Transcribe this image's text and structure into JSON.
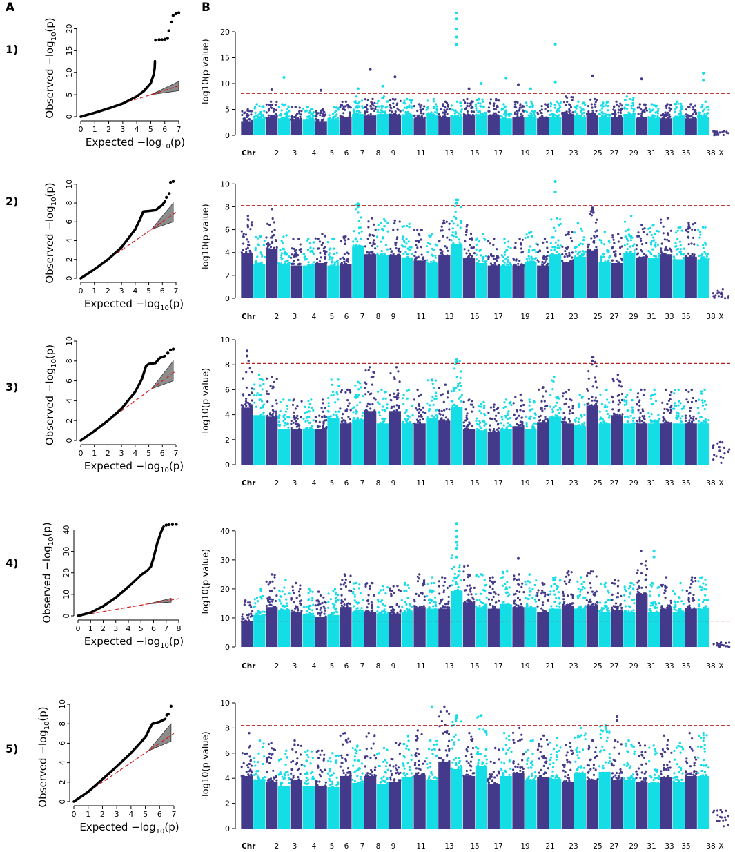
{
  "figure": {
    "panel_a_label": "A",
    "panel_b_label": "B",
    "colors": {
      "dark": "#443a8c",
      "light": "#14dde6",
      "qq_points": "#000000",
      "null_line": "#d7191c",
      "band_fill": "#8c8c8c",
      "threshold": "#b22222"
    }
  },
  "chart_data": [
    {
      "type": "scatter",
      "kind": "qq",
      "row_label": "1)",
      "xlabel_main": "Expected",
      "ylabel_main": "Observed",
      "axis_func": "−log",
      "axis_sub": "10",
      "axis_arg": "(p)",
      "xlim": [
        0,
        7
      ],
      "ylim": [
        0,
        24
      ],
      "xticks": [
        "0",
        "1",
        "2",
        "3",
        "4",
        "5",
        "6",
        "7"
      ],
      "yticks": [
        "0",
        "5",
        "10",
        "15",
        "20"
      ],
      "curve": [
        [
          0,
          0
        ],
        [
          1,
          0.9
        ],
        [
          2,
          1.9
        ],
        [
          3,
          3.0
        ],
        [
          4,
          4.6
        ],
        [
          4.5,
          5.8
        ],
        [
          5,
          7.6
        ],
        [
          5.2,
          9.5
        ],
        [
          5.28,
          11
        ],
        [
          5.3,
          12.6
        ]
      ],
      "outliers": [
        [
          5.35,
          17.4
        ],
        [
          5.6,
          17.5
        ],
        [
          5.8,
          17.5
        ],
        [
          6.0,
          17.6
        ],
        [
          6.2,
          17.8
        ],
        [
          6.3,
          19.5
        ],
        [
          6.5,
          21.5
        ],
        [
          6.6,
          23.0
        ],
        [
          6.8,
          23.4
        ],
        [
          7.0,
          23.6
        ]
      ],
      "band": {
        "x0": 5.0,
        "y0": 5.0,
        "x1": 7.0,
        "ylow": 5.9,
        "yhigh": 8.0
      }
    },
    {
      "type": "scatter",
      "kind": "qq",
      "row_label": "2)",
      "xlabel_main": "Expected",
      "ylabel_main": "Observed",
      "axis_func": "−log",
      "axis_sub": "10",
      "axis_arg": "(p)",
      "xlim": [
        0,
        7
      ],
      "ylim": [
        0,
        10.5
      ],
      "xticks": [
        "0",
        "1",
        "2",
        "3",
        "4",
        "5",
        "6",
        "7"
      ],
      "yticks": [
        "0",
        "2",
        "4",
        "6",
        "8",
        "10"
      ],
      "curve": [
        [
          0,
          0
        ],
        [
          1,
          0.95
        ],
        [
          2,
          2.0
        ],
        [
          3,
          3.3
        ],
        [
          4,
          5.2
        ],
        [
          4.4,
          6.4
        ],
        [
          4.6,
          7.1
        ],
        [
          5.0,
          7.15
        ],
        [
          5.5,
          7.25
        ],
        [
          6.0,
          7.8
        ],
        [
          6.2,
          8.2
        ]
      ],
      "outliers": [
        [
          6.3,
          8.6
        ],
        [
          6.5,
          9.0
        ],
        [
          6.6,
          10.2
        ],
        [
          6.8,
          10.3
        ]
      ],
      "band": {
        "x0": 5.2,
        "y0": 5.2,
        "x1": 6.8,
        "ylow": 6.0,
        "yhigh": 8.0
      }
    },
    {
      "type": "scatter",
      "kind": "qq",
      "row_label": "3)",
      "xlabel_main": "Expected",
      "ylabel_main": "Observed",
      "axis_func": "−log",
      "axis_sub": "10",
      "axis_arg": "(p)",
      "xlim": [
        0,
        7
      ],
      "ylim": [
        0,
        10
      ],
      "xticks": [
        "0",
        "1",
        "2",
        "3",
        "4",
        "5",
        "6",
        "7"
      ],
      "yticks": [
        "0",
        "2",
        "4",
        "6",
        "8",
        "10"
      ],
      "curve": [
        [
          0,
          0
        ],
        [
          1,
          0.95
        ],
        [
          2,
          2.0
        ],
        [
          3,
          3.2
        ],
        [
          4,
          4.9
        ],
        [
          4.5,
          6.2
        ],
        [
          4.8,
          7.5
        ],
        [
          5.0,
          7.7
        ],
        [
          5.5,
          7.8
        ],
        [
          5.8,
          8.3
        ],
        [
          6.2,
          8.5
        ]
      ],
      "outliers": [
        [
          6.4,
          8.8
        ],
        [
          6.6,
          9.1
        ],
        [
          6.8,
          9.2
        ]
      ],
      "band": {
        "x0": 5.2,
        "y0": 5.2,
        "x1": 6.8,
        "ylow": 6.0,
        "yhigh": 8.0
      }
    },
    {
      "type": "scatter",
      "kind": "qq",
      "row_label": "4)",
      "xlabel_main": "Expected",
      "ylabel_main": "Observed",
      "axis_func": "−log",
      "axis_sub": "10",
      "axis_arg": "(p)",
      "xlim": [
        0,
        8
      ],
      "ylim": [
        0,
        44
      ],
      "xticks": [
        "0",
        "1",
        "2",
        "3",
        "4",
        "5",
        "6",
        "7",
        "8"
      ],
      "yticks": [
        "0",
        "10",
        "20",
        "30",
        "40"
      ],
      "curve": [
        [
          0,
          0
        ],
        [
          1,
          1.5
        ],
        [
          2,
          4.5
        ],
        [
          3,
          8.5
        ],
        [
          4,
          13.5
        ],
        [
          5,
          19.0
        ],
        [
          5.5,
          21.0
        ],
        [
          5.8,
          23.0
        ],
        [
          6.0,
          27.0
        ],
        [
          6.3,
          34.0
        ],
        [
          6.6,
          39.0
        ],
        [
          6.8,
          41.5
        ]
      ],
      "outliers": [
        [
          7.0,
          42.2
        ],
        [
          7.2,
          42.4
        ],
        [
          7.5,
          42.5
        ],
        [
          7.8,
          42.6
        ]
      ],
      "band": {
        "x0": 5.6,
        "y0": 5.6,
        "x1": 7.4,
        "ylow": 6.4,
        "yhigh": 8.2
      }
    },
    {
      "type": "scatter",
      "kind": "qq",
      "row_label": "5)",
      "xlabel_main": "Expected",
      "ylabel_main": "Observed",
      "axis_func": "−log",
      "axis_sub": "10",
      "axis_arg": "(p)",
      "xlim": [
        0,
        7
      ],
      "ylim": [
        0,
        10
      ],
      "xticks": [
        "0",
        "1",
        "2",
        "3",
        "4",
        "5",
        "6",
        "7"
      ],
      "yticks": [
        "0",
        "2",
        "4",
        "6",
        "8",
        "10"
      ],
      "curve": [
        [
          0,
          0
        ],
        [
          1,
          1.0
        ],
        [
          2,
          2.3
        ],
        [
          3,
          3.6
        ],
        [
          4,
          5.0
        ],
        [
          5,
          6.6
        ],
        [
          5.3,
          7.5
        ],
        [
          5.5,
          8.0
        ],
        [
          6.0,
          8.2
        ],
        [
          6.4,
          8.5
        ]
      ],
      "outliers": [
        [
          6.5,
          8.9
        ],
        [
          6.6,
          9.0
        ],
        [
          6.8,
          9.8
        ]
      ],
      "band": {
        "x0": 5.2,
        "y0": 5.2,
        "x1": 6.8,
        "ylow": 6.2,
        "yhigh": 8.0
      }
    },
    {
      "type": "scatter",
      "kind": "manhattan",
      "ylabel": "-log10(p-value)",
      "ylim": [
        0,
        24
      ],
      "yticks": [
        "0",
        "5",
        "10",
        "15",
        "20"
      ],
      "threshold": 8.1,
      "chr_labels": [
        "Chr",
        "2",
        "3",
        "4",
        "5",
        "6",
        "7",
        "8",
        "9",
        "11",
        "13",
        "15",
        "17",
        "19",
        "21",
        "23",
        "25",
        "27",
        "29",
        "31",
        "33",
        "35",
        "38",
        "X"
      ],
      "baseline": [
        5.0,
        6.0,
        6.5,
        6.0,
        5.5,
        5.5,
        5.0,
        5.5,
        6.5,
        7.5,
        7.0,
        7.5,
        7.0,
        7.0,
        6.0,
        7.0,
        6.5,
        6.5,
        7.0,
        7.0,
        7.0,
        6.0,
        6.5,
        6.5,
        6.0,
        6.5,
        7.5,
        6.5,
        7.0,
        6.5,
        6.5,
        7.5,
        6.0,
        6.0,
        6.0,
        6.5,
        6.0,
        6.5,
        0.8
      ],
      "peaks": [
        [
          2,
          8.8
        ],
        [
          3,
          11.2
        ],
        [
          6,
          8.7
        ],
        [
          9,
          9.0
        ],
        [
          10,
          12.7
        ],
        [
          11,
          9.5
        ],
        [
          12,
          11.3
        ],
        [
          17,
          23.6
        ],
        [
          17,
          22.5
        ],
        [
          17,
          20.5
        ],
        [
          17,
          19.0
        ],
        [
          17,
          17.5
        ],
        [
          18,
          9.0
        ],
        [
          19,
          10.0
        ],
        [
          21,
          11.0
        ],
        [
          22,
          9.8
        ],
        [
          23,
          9.0
        ],
        [
          25,
          17.6
        ],
        [
          25,
          10.3
        ],
        [
          28,
          11.5
        ],
        [
          32,
          10.9
        ],
        [
          37,
          12.0
        ],
        [
          37,
          10.6
        ]
      ]
    },
    {
      "type": "scatter",
      "kind": "manhattan",
      "ylabel": "-log10(p-value)",
      "ylim": [
        0,
        10.5
      ],
      "yticks": [
        "0",
        "2",
        "4",
        "6",
        "8",
        "10"
      ],
      "threshold": 8.1,
      "chr_labels": [
        "Chr",
        "2",
        "3",
        "4",
        "5",
        "6",
        "7",
        "8",
        "9",
        "11",
        "13",
        "15",
        "17",
        "19",
        "21",
        "23",
        "25",
        "27",
        "29",
        "31",
        "33",
        "35",
        "38",
        "X"
      ],
      "baseline": [
        7.2,
        5.4,
        7.8,
        5.5,
        5.2,
        5.2,
        5.6,
        5.2,
        5.4,
        8.2,
        7.0,
        6.9,
        6.8,
        6.5,
        6.0,
        5.6,
        6.8,
        8.6,
        6.4,
        5.6,
        5.2,
        5.2,
        5.2,
        5.8,
        5.2,
        7.0,
        5.8,
        6.6,
        7.6,
        5.8,
        5.6,
        7.2,
        6.4,
        6.4,
        7.0,
        6.2,
        6.6,
        6.2,
        0.8
      ],
      "peaks": [
        [
          9,
          8.25
        ],
        [
          9,
          8.0
        ],
        [
          17,
          8.6
        ],
        [
          17,
          8.3
        ],
        [
          25,
          10.2
        ],
        [
          25,
          9.3
        ],
        [
          28,
          7.9
        ],
        [
          28,
          7.7
        ]
      ]
    },
    {
      "type": "scatter",
      "kind": "manhattan",
      "ylabel": "-log10(p-value)",
      "ylim": [
        0,
        10
      ],
      "yticks": [
        "0",
        "2",
        "4",
        "6",
        "8",
        "10"
      ],
      "threshold": 8.1,
      "chr_labels": [
        "Chr",
        "2",
        "3",
        "4",
        "5",
        "6",
        "7",
        "8",
        "9",
        "11",
        "13",
        "15",
        "17",
        "19",
        "21",
        "23",
        "25",
        "27",
        "29",
        "31",
        "33",
        "35",
        "38",
        "X"
      ],
      "baseline": [
        8.3,
        7.2,
        7.0,
        5.2,
        5.2,
        5.2,
        5.2,
        6.8,
        6.0,
        6.6,
        7.8,
        6.0,
        7.8,
        6.0,
        6.0,
        6.8,
        6.4,
        8.4,
        5.2,
        5.0,
        4.8,
        5.2,
        5.6,
        5.2,
        6.2,
        7.0,
        6.0,
        5.6,
        8.6,
        6.0,
        7.2,
        6.0,
        6.0,
        6.0,
        6.0,
        6.0,
        6.0,
        6.0,
        1.8
      ],
      "peaks": [
        [
          0,
          9.1
        ],
        [
          0,
          8.7
        ],
        [
          17,
          8.4
        ],
        [
          17,
          8.2
        ],
        [
          28,
          8.6
        ],
        [
          28,
          8.3
        ]
      ]
    },
    {
      "type": "scatter",
      "kind": "manhattan",
      "ylabel": "-log10(p-value)",
      "ylim": [
        0,
        44
      ],
      "yticks": [
        "0",
        "10",
        "20",
        "30",
        "40"
      ],
      "threshold": 8.9,
      "chr_labels": [
        "Chr",
        "2",
        "3",
        "4",
        "5",
        "6",
        "7",
        "8",
        "9",
        "11",
        "13",
        "15",
        "17",
        "19",
        "21",
        "23",
        "25",
        "27",
        "29",
        "31",
        "33",
        "35",
        "38",
        "X"
      ],
      "baseline": [
        16.0,
        20.0,
        25.0,
        23.0,
        22.0,
        20.0,
        19.0,
        20.0,
        25.0,
        22.0,
        22.0,
        21.0,
        21.0,
        22.0,
        25.0,
        24.0,
        24.0,
        35.0,
        28.0,
        25.0,
        24.0,
        26.0,
        25.0,
        25.0,
        22.0,
        24.0,
        26.0,
        24.0,
        26.0,
        22.0,
        23.0,
        22.0,
        33.0,
        22.0,
        24.0,
        22.0,
        24.0,
        24.0,
        1.5
      ],
      "peaks": [
        [
          17,
          42.5
        ],
        [
          17,
          40.0
        ],
        [
          17,
          38.0
        ],
        [
          17,
          36.0
        ],
        [
          17,
          34.0
        ],
        [
          17,
          31.0
        ],
        [
          22,
          30.5
        ],
        [
          33,
          33.0
        ],
        [
          33,
          31.0
        ]
      ]
    },
    {
      "type": "scatter",
      "kind": "manhattan",
      "ylabel": "-log10(p-value)",
      "ylim": [
        0,
        10
      ],
      "yticks": [
        "0",
        "2",
        "4",
        "6",
        "8",
        "10"
      ],
      "threshold": 8.2,
      "chr_labels": [
        "Chr",
        "2",
        "3",
        "4",
        "5",
        "6",
        "7",
        "8",
        "9",
        "11",
        "13",
        "15",
        "17",
        "19",
        "21",
        "23",
        "25",
        "27",
        "29",
        "31",
        "33",
        "35",
        "38",
        "X"
      ],
      "baseline": [
        7.6,
        7.0,
        6.8,
        6.2,
        7.0,
        6.2,
        6.2,
        6.0,
        7.6,
        6.6,
        7.6,
        6.4,
        6.8,
        7.4,
        7.8,
        7.0,
        9.7,
        8.6,
        7.6,
        9.0,
        6.4,
        7.6,
        8.0,
        7.0,
        7.4,
        7.2,
        6.8,
        8.0,
        7.0,
        8.2,
        7.0,
        7.0,
        6.8,
        6.6,
        7.4,
        6.8,
        7.6,
        7.6,
        1.5
      ],
      "peaks": [
        [
          15,
          9.7
        ],
        [
          17,
          9.0
        ],
        [
          17,
          8.8
        ],
        [
          19,
          9.0
        ],
        [
          30,
          8.9
        ],
        [
          30,
          8.6
        ]
      ]
    }
  ]
}
